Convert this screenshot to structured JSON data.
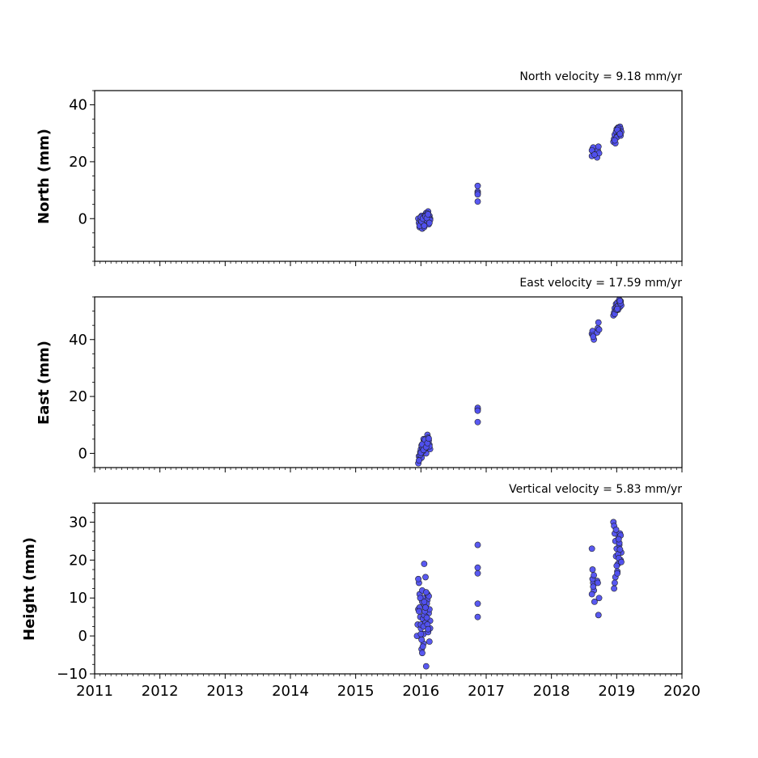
{
  "chart_data": [
    {
      "type": "scatter",
      "title": "North velocity = 9.18 mm/yr",
      "xlabel": "",
      "ylabel": "North (mm)",
      "xlim": [
        2011,
        2020
      ],
      "ylim": [
        -15,
        45
      ],
      "yticks": [
        "0",
        "20",
        "40"
      ],
      "ytick_values": [
        0,
        20,
        40
      ],
      "x_tick_labels_shown": false,
      "marker_color": "#5050f0",
      "edge_color": "#222222",
      "grid": false,
      "series": [
        {
          "x": [
            2015.96,
            2015.97,
            2015.98,
            2015.99,
            2016.0,
            2016.01,
            2016.02,
            2016.03,
            2016.04,
            2016.05,
            2016.06,
            2016.07,
            2016.08,
            2016.09,
            2016.1,
            2016.11,
            2016.12,
            2016.13,
            2016.14,
            2015.98,
            2016.0,
            2016.02,
            2016.04,
            2016.06,
            2016.08,
            2016.1,
            2016.12,
            2016.14,
            2016.01,
            2016.03,
            2016.05,
            2016.07,
            2016.09,
            2016.11,
            2016.13,
            2016.87,
            2016.87,
            2016.87,
            2016.87,
            2016.87,
            2018.62,
            2018.63,
            2018.64,
            2018.65,
            2018.7,
            2018.71,
            2018.72,
            2018.73,
            2018.62,
            2018.66,
            2018.95,
            2018.96,
            2018.97,
            2018.98,
            2018.99,
            2019.0,
            2019.01,
            2019.02,
            2019.03,
            2019.04,
            2019.05,
            2019.06,
            2019.07,
            2019.0,
            2019.02,
            2019.04,
            2019.06,
            2018.97,
            2019.01,
            2019.05
          ],
          "y": [
            0.0,
            -1.5,
            -3.0,
            -0.5,
            -2.0,
            1.0,
            -3.5,
            0.5,
            -1.0,
            -3.0,
            0.0,
            1.5,
            2.0,
            -1.5,
            0.5,
            2.5,
            -2.0,
            1.0,
            0.0,
            -2.5,
            0.5,
            -1.0,
            -2.0,
            1.0,
            -0.5,
            1.8,
            0.5,
            -0.5,
            -1.0,
            0.0,
            -2.5,
            0.8,
            0.2,
            1.5,
            -1.5,
            11.5,
            9.5,
            9.0,
            8.5,
            6.0,
            22.0,
            24.5,
            25.0,
            23.5,
            21.5,
            24.0,
            25.3,
            23.0,
            24.0,
            22.5,
            27.0,
            28.0,
            29.5,
            26.5,
            30.5,
            31.5,
            29.0,
            32.0,
            31.0,
            30.0,
            32.3,
            31.5,
            30.5,
            28.5,
            31.8,
            30.2,
            29.2,
            27.5,
            31.2,
            29.8
          ]
        }
      ]
    },
    {
      "type": "scatter",
      "title": "East velocity = 17.59 mm/yr",
      "xlabel": "",
      "ylabel": "East (mm)",
      "xlim": [
        2011,
        2020
      ],
      "ylim": [
        -5,
        55
      ],
      "yticks": [
        "0",
        "20",
        "40"
      ],
      "ytick_values": [
        0,
        20,
        40
      ],
      "x_tick_labels_shown": false,
      "marker_color": "#5050f0",
      "edge_color": "#222222",
      "grid": false,
      "series": [
        {
          "x": [
            2015.96,
            2015.97,
            2015.98,
            2015.99,
            2016.0,
            2016.01,
            2016.02,
            2016.03,
            2016.04,
            2016.05,
            2016.06,
            2016.07,
            2016.08,
            2016.09,
            2016.1,
            2016.11,
            2016.12,
            2016.13,
            2016.14,
            2015.97,
            2015.99,
            2016.01,
            2016.03,
            2016.05,
            2016.07,
            2016.09,
            2016.11,
            2016.13,
            2016.0,
            2016.02,
            2016.04,
            2016.06,
            2016.08,
            2016.1,
            2016.12,
            2016.87,
            2016.87,
            2016.87,
            2016.87,
            2018.62,
            2018.63,
            2018.64,
            2018.65,
            2018.7,
            2018.71,
            2018.72,
            2018.73,
            2018.64,
            2018.95,
            2018.96,
            2018.97,
            2018.98,
            2018.99,
            2019.0,
            2019.01,
            2019.02,
            2019.03,
            2019.04,
            2019.05,
            2019.06,
            2019.07,
            2018.97,
            2019.0,
            2019.02,
            2019.04,
            2019.06,
            2019.01,
            2019.05
          ],
          "y": [
            -3.5,
            -1.0,
            -2.0,
            0.5,
            1.5,
            -1.5,
            2.0,
            3.0,
            5.0,
            1.0,
            2.5,
            4.0,
            0.0,
            3.5,
            6.5,
            2.0,
            4.5,
            3.0,
            1.5,
            -2.5,
            -0.5,
            2.8,
            0.8,
            4.2,
            1.8,
            3.8,
            5.5,
            2.5,
            0.2,
            3.2,
            1.2,
            4.8,
            2.2,
            3.6,
            5.2,
            15.5,
            16.0,
            15.0,
            11.0,
            42.0,
            43.0,
            41.5,
            40.0,
            42.5,
            44.0,
            46.0,
            43.5,
            41.0,
            48.5,
            49.5,
            51.0,
            50.0,
            52.5,
            51.5,
            53.0,
            50.5,
            52.0,
            54.0,
            51.5,
            53.5,
            52.0,
            49.0,
            50.5,
            51.8,
            53.2,
            52.8,
            50.8,
            53.6
          ]
        }
      ]
    },
    {
      "type": "scatter",
      "title": "Vertical velocity = 5.83 mm/yr",
      "xlabel": "",
      "ylabel": "Height (mm)",
      "xlim": [
        2011,
        2020
      ],
      "ylim": [
        -10,
        35
      ],
      "yticks": [
        "−10",
        "0",
        "10",
        "20",
        "30"
      ],
      "ytick_values": [
        -10,
        0,
        10,
        20,
        30
      ],
      "x_tick_labels": [
        "2011",
        "2012",
        "2013",
        "2014",
        "2015",
        "2016",
        "2017",
        "2018",
        "2019",
        "2020"
      ],
      "x_tick_values": [
        2011,
        2012,
        2013,
        2014,
        2015,
        2016,
        2017,
        2018,
        2019,
        2020
      ],
      "x_tick_labels_shown": true,
      "marker_color": "#5050f0",
      "edge_color": "#222222",
      "grid": false,
      "series": [
        {
          "x": [
            2015.94,
            2015.95,
            2015.96,
            2015.97,
            2015.98,
            2015.99,
            2016.0,
            2016.01,
            2016.02,
            2016.03,
            2016.04,
            2016.05,
            2016.06,
            2016.07,
            2016.08,
            2016.09,
            2016.1,
            2016.11,
            2016.12,
            2016.13,
            2016.14,
            2015.96,
            2015.98,
            2016.0,
            2016.02,
            2016.04,
            2016.06,
            2016.08,
            2016.1,
            2016.12,
            2016.14,
            2015.97,
            2015.99,
            2016.01,
            2016.03,
            2016.05,
            2016.07,
            2016.09,
            2016.11,
            2016.13,
            2016.02,
            2016.04,
            2016.06,
            2016.08,
            2016.1,
            2016.0,
            2016.05,
            2016.09,
            2016.03,
            2016.07,
            2016.11,
            2016.87,
            2016.87,
            2016.87,
            2016.87,
            2016.87,
            2018.62,
            2018.63,
            2018.64,
            2018.65,
            2018.66,
            2018.7,
            2018.71,
            2018.72,
            2018.73,
            2018.63,
            2018.65,
            2018.62,
            2018.64,
            2018.95,
            2018.96,
            2018.97,
            2018.98,
            2018.99,
            2019.0,
            2019.01,
            2019.02,
            2019.03,
            2019.04,
            2019.05,
            2019.06,
            2019.07,
            2018.96,
            2018.98,
            2019.0,
            2019.02,
            2019.04,
            2019.06,
            2018.97,
            2019.01,
            2019.03,
            2019.05,
            2018.99,
            2019.03,
            2019.07
          ],
          "y": [
            0.0,
            3.0,
            7.0,
            14.0,
            11.0,
            5.0,
            2.0,
            -3.5,
            9.0,
            10.0,
            -2.0,
            19.0,
            4.0,
            15.5,
            -8.0,
            7.0,
            11.0,
            1.5,
            6.0,
            -1.5,
            4.0,
            15.0,
            7.5,
            3.0,
            12.0,
            0.5,
            8.0,
            5.0,
            9.5,
            10.5,
            2.0,
            6.5,
            10.0,
            -1.0,
            4.5,
            5.5,
            3.5,
            8.5,
            1.0,
            7.0,
            -4.5,
            2.5,
            6.5,
            11.5,
            3.0,
            0.5,
            9.0,
            4.8,
            -2.8,
            7.5,
            1.8,
            24.0,
            18.0,
            16.5,
            8.5,
            5.0,
            23.0,
            17.5,
            14.0,
            12.0,
            9.0,
            14.5,
            14.0,
            5.5,
            10.0,
            15.0,
            16.0,
            11.0,
            13.0,
            30.0,
            29.0,
            27.0,
            25.0,
            21.0,
            23.0,
            17.0,
            19.0,
            26.0,
            24.0,
            27.0,
            20.0,
            22.0,
            12.5,
            15.5,
            18.5,
            21.5,
            24.5,
            26.5,
            14.0,
            16.5,
            20.5,
            22.8,
            28.0,
            25.5,
            19.5
          ]
        }
      ]
    }
  ]
}
